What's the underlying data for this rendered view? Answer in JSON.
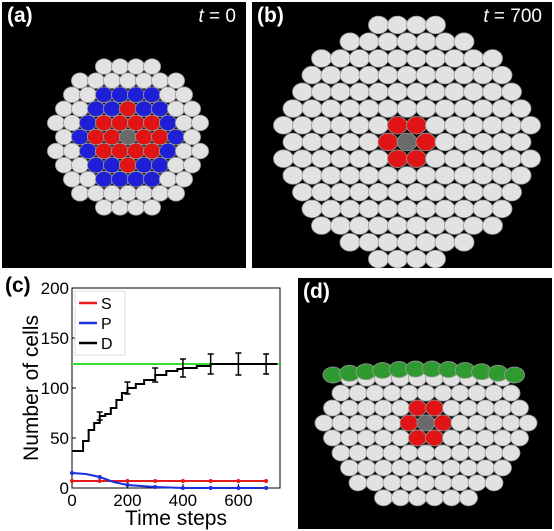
{
  "panels": {
    "a": {
      "label": "(a)",
      "time_var": "t",
      "time_rest": " = 0"
    },
    "b": {
      "label": "(b)",
      "time_var": "t",
      "time_rest": " = 700"
    },
    "c": {
      "label": "(c)"
    },
    "d": {
      "label": "(d)"
    }
  },
  "colors": {
    "background": "#000000",
    "differentiated_cell": "#e2e2e2",
    "proliferating_cell": "#1f1fd8",
    "stem_cell": "#e01414",
    "core_cell": "#6a6a6a",
    "boundary_cell": "#2f9a2f"
  },
  "chart_data": {
    "type": "line",
    "xlabel": "Time steps",
    "ylabel": "Number of cells",
    "xlim": [
      0,
      750
    ],
    "ylim": [
      0,
      200
    ],
    "xticks": [
      0,
      200,
      400,
      600
    ],
    "yticks": [
      0,
      50,
      100,
      150,
      200
    ],
    "legend_position": "top-left",
    "series": [
      {
        "name": "S",
        "color": "#e51a1a",
        "x": [
          0,
          100,
          200,
          300,
          400,
          500,
          600,
          700
        ],
        "y": [
          7,
          7,
          7,
          7,
          7,
          7,
          7,
          7
        ],
        "err": [
          0,
          0,
          0,
          0,
          0,
          0,
          0,
          0
        ]
      },
      {
        "name": "P",
        "color": "#1a2ee0",
        "x": [
          0,
          50,
          100,
          150,
          200,
          300,
          400,
          500,
          600,
          700
        ],
        "y": [
          15,
          14,
          11,
          6,
          3,
          1,
          0,
          0,
          0,
          0
        ],
        "err": [
          0,
          0,
          2,
          0,
          1,
          0,
          0,
          0,
          0,
          0
        ]
      },
      {
        "name": "D",
        "color": "#000000",
        "x": [
          0,
          20,
          40,
          60,
          80,
          100,
          120,
          140,
          160,
          180,
          200,
          230,
          260,
          300,
          340,
          380,
          400,
          450,
          500,
          550,
          600,
          650,
          700,
          720
        ],
        "y": [
          37,
          37,
          47,
          58,
          65,
          72,
          74,
          80,
          88,
          95,
          100,
          104,
          108,
          113,
          117,
          119,
          120,
          122,
          124,
          124,
          124,
          124,
          124,
          124
        ],
        "err_x": [
          100,
          200,
          300,
          400,
          500,
          600,
          700
        ],
        "err_y": [
          72,
          100,
          113,
          120,
          124,
          124,
          124
        ],
        "err_size": [
          4,
          6,
          7,
          9,
          10,
          11,
          10
        ]
      }
    ],
    "reference_line": {
      "y": 124,
      "color": "#33dd33"
    }
  }
}
